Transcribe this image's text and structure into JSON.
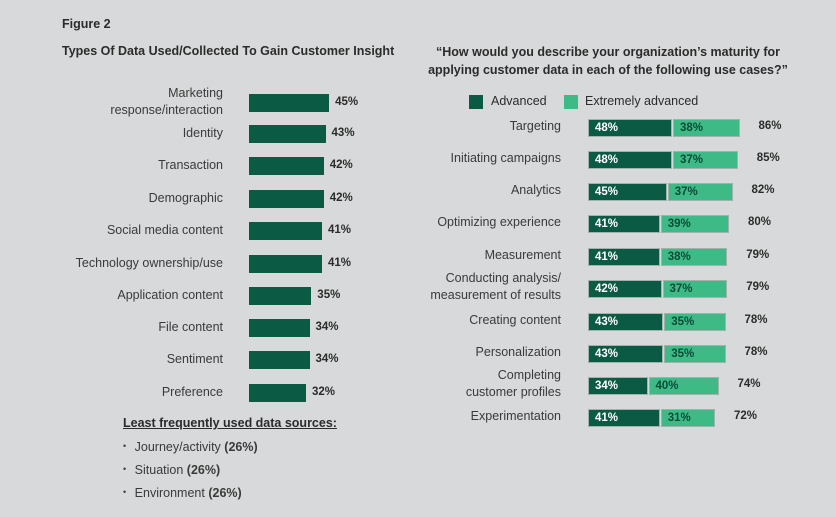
{
  "figure_label": "Figure 2",
  "colors": {
    "advanced": "#0b5a44",
    "extremely_advanced": "#3dba86",
    "background": "#d8d9da"
  },
  "chart_data": [
    {
      "type": "bar",
      "orientation": "horizontal",
      "title": "Types Of Data Used/Collected To Gain Customer Insight",
      "categories": [
        "Marketing response/interaction",
        "Identity",
        "Transaction",
        "Demographic",
        "Social media content",
        "Technology ownership/use",
        "Application content",
        "File content",
        "Sentiment",
        "Preference"
      ],
      "category_lines": [
        [
          "Marketing",
          "response/interaction"
        ],
        [
          "Identity"
        ],
        [
          "Transaction"
        ],
        [
          "Demographic"
        ],
        [
          "Social media content"
        ],
        [
          "Technology ownership/use"
        ],
        [
          "Application content"
        ],
        [
          "File content"
        ],
        [
          "Sentiment"
        ],
        [
          "Preference"
        ]
      ],
      "values": [
        45,
        43,
        42,
        42,
        41,
        41,
        35,
        34,
        34,
        32
      ],
      "value_labels": [
        "45%",
        "43%",
        "42%",
        "42%",
        "41%",
        "41%",
        "35%",
        "34%",
        "34%",
        "32%"
      ],
      "least_frequent": {
        "heading": "Least frequently used data sources:",
        "items": [
          {
            "label": "Journey/activity",
            "value": "(26%)"
          },
          {
            "label": "Situation",
            "value": "(26%)"
          },
          {
            "label": "Environment",
            "value": "(26%)"
          }
        ]
      }
    },
    {
      "type": "bar",
      "orientation": "horizontal",
      "stacked": true,
      "title": "“How would you describe your organization’s maturity for applying customer data in each of the following use cases?”",
      "legend": {
        "position": "top",
        "items": [
          "Advanced",
          "Extremely advanced"
        ]
      },
      "categories": [
        "Targeting",
        "Initiating campaigns",
        "Analytics",
        "Optimizing experience",
        "Measurement",
        "Conducting analysis/ measurement of results",
        "Creating content",
        "Personalization",
        "Completing customer profiles",
        "Experimentation"
      ],
      "category_lines": [
        [
          "Targeting"
        ],
        [
          "Initiating campaigns"
        ],
        [
          "Analytics"
        ],
        [
          "Optimizing experience"
        ],
        [
          "Measurement"
        ],
        [
          "Conducting analysis/",
          "measurement of results"
        ],
        [
          "Creating content"
        ],
        [
          "Personalization"
        ],
        [
          "Completing",
          "customer profiles"
        ],
        [
          "Experimentation"
        ]
      ],
      "series": [
        {
          "name": "Advanced",
          "values": [
            48,
            48,
            45,
            41,
            41,
            42,
            43,
            43,
            34,
            41
          ],
          "labels": [
            "48%",
            "48%",
            "45%",
            "41%",
            "41%",
            "42%",
            "43%",
            "43%",
            "34%",
            "41%"
          ]
        },
        {
          "name": "Extremely advanced",
          "values": [
            38,
            37,
            37,
            39,
            38,
            37,
            35,
            35,
            40,
            31
          ],
          "labels": [
            "38%",
            "37%",
            "37%",
            "39%",
            "38%",
            "37%",
            "35%",
            "35%",
            "40%",
            "31%"
          ]
        }
      ],
      "totals": [
        "86%",
        "85%",
        "82%",
        "80%",
        "79%",
        "79%",
        "78%",
        "78%",
        "74%",
        "72%"
      ]
    }
  ]
}
